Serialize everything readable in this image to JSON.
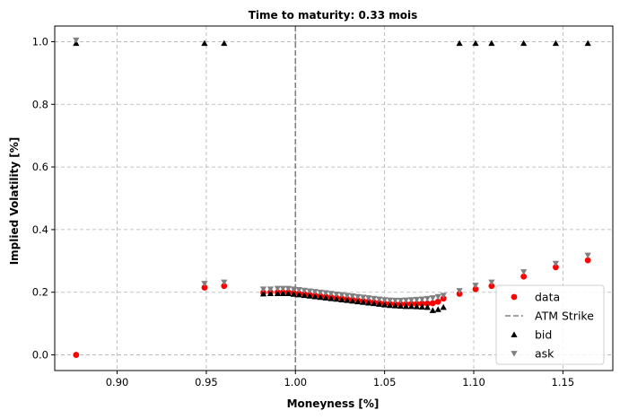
{
  "chart_data": {
    "type": "scatter",
    "title": "Time to maturity: 0.33 mois",
    "xlabel": "Moneyness [%]",
    "ylabel": "Implied Volatility [%]",
    "xlim": [
      0.865,
      1.178
    ],
    "ylim": [
      -0.05,
      1.05
    ],
    "xticks": [
      "0.90",
      "0.95",
      "1.00",
      "1.05",
      "1.10",
      "1.15"
    ],
    "yticks": [
      "0.0",
      "0.2",
      "0.4",
      "0.6",
      "0.8",
      "1.0"
    ],
    "grid": true,
    "legend_position": "lower-right",
    "atm_strike": 1.0,
    "series": [
      {
        "name": "data",
        "marker": "circle",
        "color": "#ff0000",
        "x": [
          0.877,
          0.949,
          0.96,
          0.982,
          0.986,
          0.99,
          0.993,
          0.996,
          0.999,
          1.002,
          1.005,
          1.008,
          1.011,
          1.014,
          1.017,
          1.02,
          1.023,
          1.026,
          1.029,
          1.032,
          1.035,
          1.038,
          1.041,
          1.044,
          1.047,
          1.05,
          1.053,
          1.056,
          1.059,
          1.062,
          1.065,
          1.068,
          1.071,
          1.074,
          1.077,
          1.08,
          1.083,
          1.092,
          1.101,
          1.11,
          1.128,
          1.146,
          1.164
        ],
        "y": [
          0.0,
          0.215,
          0.22,
          0.199,
          0.2,
          0.2,
          0.2,
          0.2,
          0.198,
          0.196,
          0.194,
          0.192,
          0.19,
          0.188,
          0.186,
          0.184,
          0.182,
          0.18,
          0.178,
          0.176,
          0.174,
          0.172,
          0.17,
          0.168,
          0.166,
          0.164,
          0.163,
          0.162,
          0.162,
          0.162,
          0.163,
          0.163,
          0.164,
          0.164,
          0.165,
          0.17,
          0.18,
          0.195,
          0.21,
          0.22,
          0.25,
          0.28,
          0.302
        ]
      },
      {
        "name": "bid",
        "marker": "triangle-up",
        "color": "#000000",
        "x": [
          0.877,
          0.949,
          0.96,
          0.982,
          0.986,
          0.99,
          0.993,
          0.996,
          0.999,
          1.002,
          1.005,
          1.008,
          1.011,
          1.014,
          1.017,
          1.02,
          1.023,
          1.026,
          1.029,
          1.032,
          1.035,
          1.038,
          1.041,
          1.044,
          1.047,
          1.05,
          1.053,
          1.056,
          1.059,
          1.062,
          1.065,
          1.068,
          1.071,
          1.074,
          1.077,
          1.08,
          1.083,
          1.092,
          1.101,
          1.11,
          1.128,
          1.146,
          1.164
        ],
        "y": [
          0.995,
          0.995,
          0.995,
          0.195,
          0.196,
          0.196,
          0.196,
          0.196,
          0.194,
          0.192,
          0.19,
          0.188,
          0.186,
          0.184,
          0.182,
          0.18,
          0.178,
          0.176,
          0.174,
          0.172,
          0.17,
          0.168,
          0.166,
          0.164,
          0.162,
          0.16,
          0.158,
          0.157,
          0.156,
          0.155,
          0.155,
          0.154,
          0.153,
          0.152,
          0.142,
          0.145,
          0.152,
          0.995,
          0.995,
          0.995,
          0.995,
          0.995,
          0.995
        ]
      },
      {
        "name": "ask",
        "marker": "triangle-down",
        "color": "#808080",
        "x": [
          0.877,
          0.949,
          0.96,
          0.982,
          0.986,
          0.99,
          0.993,
          0.996,
          0.999,
          1.002,
          1.005,
          1.008,
          1.011,
          1.014,
          1.017,
          1.02,
          1.023,
          1.026,
          1.029,
          1.032,
          1.035,
          1.038,
          1.041,
          1.044,
          1.047,
          1.05,
          1.053,
          1.056,
          1.059,
          1.062,
          1.065,
          1.068,
          1.071,
          1.074,
          1.077,
          1.08,
          1.083,
          1.092,
          1.101,
          1.11,
          1.128,
          1.146,
          1.164
        ],
        "y": [
          1.005,
          0.228,
          0.232,
          0.21,
          0.21,
          0.212,
          0.212,
          0.212,
          0.21,
          0.208,
          0.206,
          0.204,
          0.202,
          0.2,
          0.198,
          0.196,
          0.194,
          0.192,
          0.19,
          0.188,
          0.186,
          0.184,
          0.182,
          0.18,
          0.178,
          0.176,
          0.175,
          0.174,
          0.174,
          0.175,
          0.176,
          0.177,
          0.178,
          0.18,
          0.182,
          0.186,
          0.19,
          0.205,
          0.222,
          0.232,
          0.265,
          0.292,
          0.318
        ]
      }
    ],
    "legend": [
      {
        "label": "data",
        "marker": "circle",
        "color": "#ff0000"
      },
      {
        "label": "ATM Strike",
        "marker": "dashed-line",
        "color": "#808080"
      },
      {
        "label": "bid",
        "marker": "triangle-up",
        "color": "#000000"
      },
      {
        "label": "ask",
        "marker": "triangle-down",
        "color": "#808080"
      }
    ]
  }
}
